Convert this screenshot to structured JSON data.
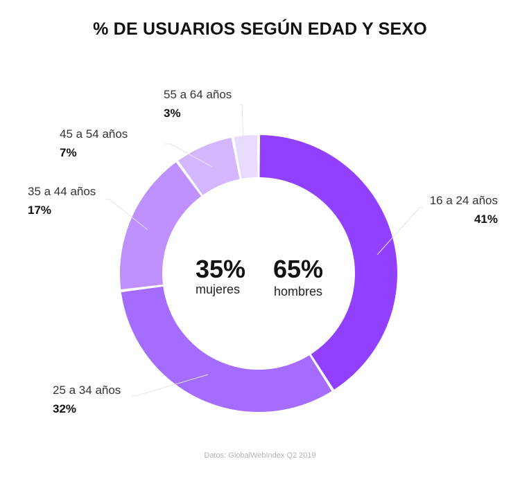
{
  "title": "% DE USUARIOS SEGÚN EDAD Y SEXO",
  "source": "Datos: GlobalWebIndex Q2 2019",
  "center": {
    "women": {
      "pct": "35%",
      "label": "mujeres"
    },
    "men": {
      "pct": "65%",
      "label": "hombres"
    }
  },
  "chart_data": {
    "type": "pie",
    "donut": true,
    "title": "% DE USUARIOS SEGÚN EDAD Y SEXO",
    "categories": [
      "16 a 24 años",
      "25 a 34 años",
      "35 a 44 años",
      "45 a 54 años",
      "55 a 64 años"
    ],
    "values": [
      41,
      32,
      17,
      7,
      3
    ],
    "value_labels": [
      "41%",
      "32%",
      "17%",
      "7%",
      "3%"
    ],
    "colors": [
      "#9240ff",
      "#a56dff",
      "#be91ff",
      "#d4b6ff",
      "#e9dbff"
    ]
  }
}
